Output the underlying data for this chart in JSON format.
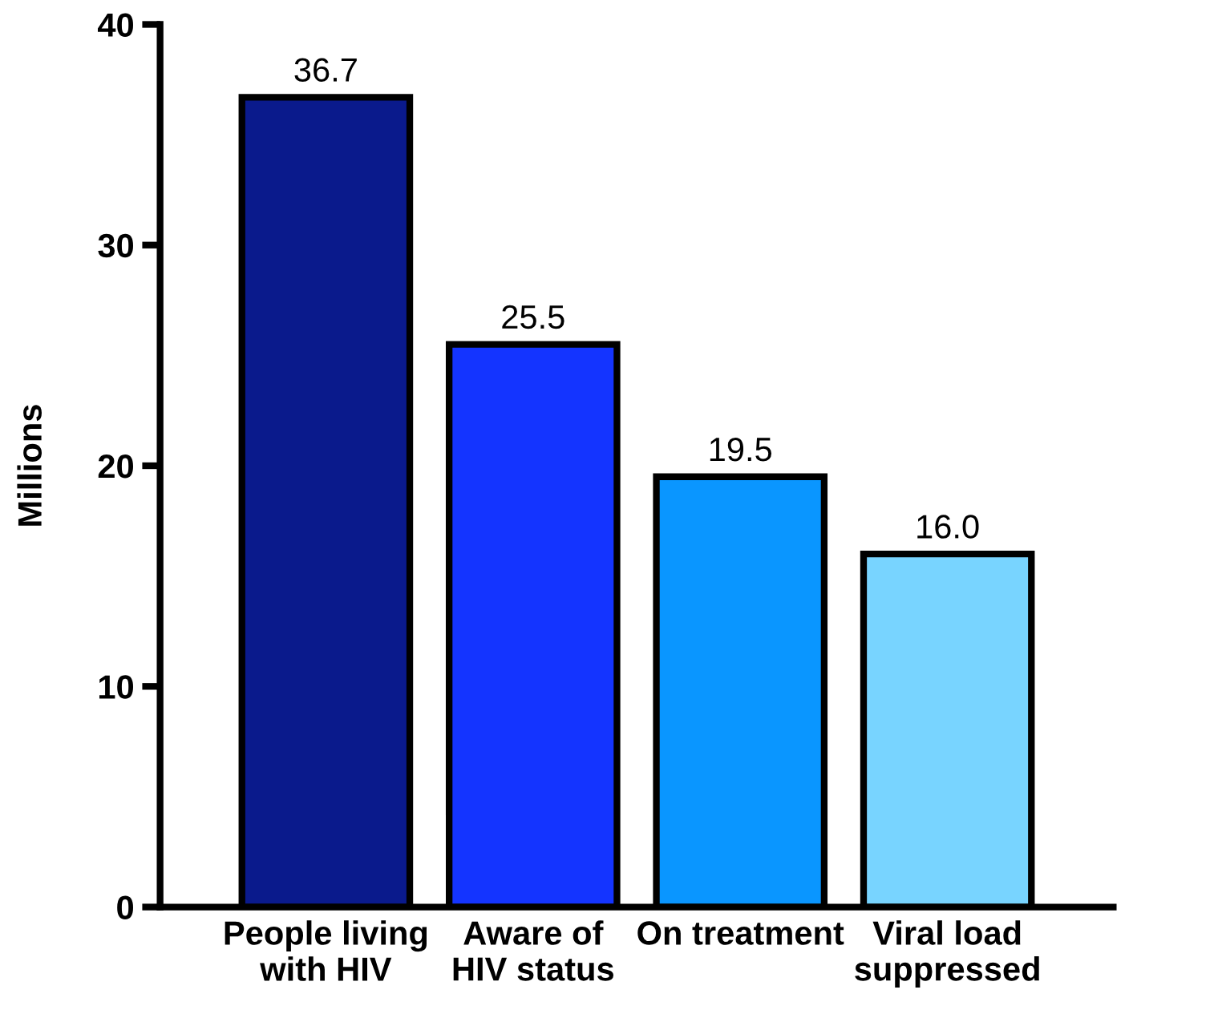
{
  "chart_data": {
    "type": "bar",
    "ylabel": "Millions",
    "categories": [
      "People living\nwith HIV",
      "Aware of\nHIV status",
      "On treatment",
      "Viral load\nsuppressed"
    ],
    "values": [
      36.7,
      25.5,
      19.5,
      16.0
    ],
    "colors": [
      "#0a1a8c",
      "#1434ff",
      "#0a96ff",
      "#78d4ff"
    ],
    "value_labels": [
      "36.7",
      "25.5",
      "19.5",
      "16.0"
    ],
    "ylim": [
      0,
      40
    ],
    "yticks": [
      0,
      10,
      20,
      30,
      40
    ],
    "grid": false,
    "legend": false
  }
}
